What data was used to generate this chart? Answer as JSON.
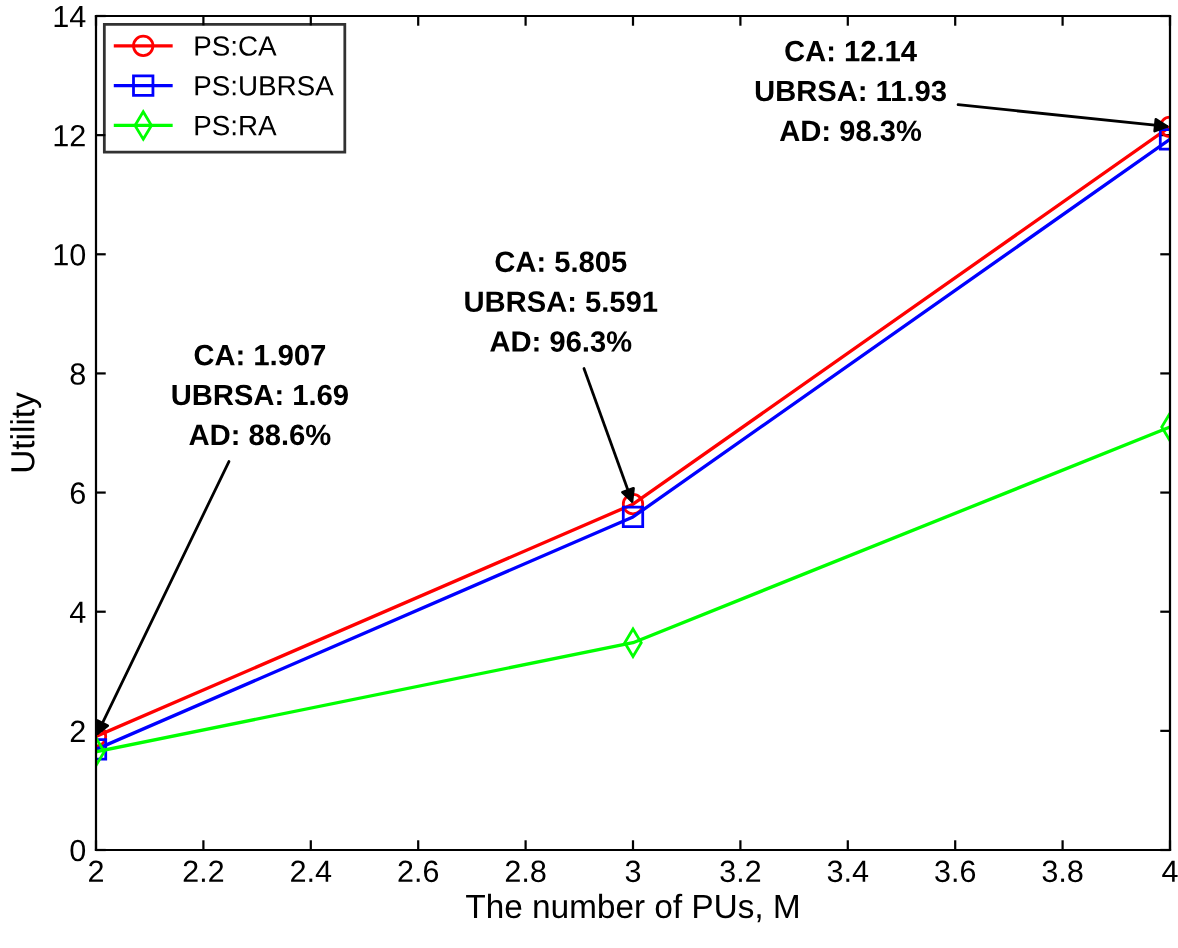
{
  "chart_data": {
    "type": "line",
    "xlabel": "The number of PUs, M",
    "ylabel": "Utility",
    "x": [
      2,
      3,
      4
    ],
    "series": [
      {
        "name": "PS:CA",
        "color": "#ff0000",
        "marker": "circle",
        "values": [
          1.907,
          5.805,
          12.14
        ]
      },
      {
        "name": "PS:UBRSA",
        "color": "#0000ff",
        "marker": "square",
        "values": [
          1.69,
          5.591,
          11.93
        ]
      },
      {
        "name": "PS:RA",
        "color": "#00ff00",
        "marker": "diamond",
        "values": [
          1.65,
          3.48,
          7.1
        ]
      }
    ],
    "xlim": [
      2,
      4
    ],
    "xticks": [
      2,
      2.2,
      2.4,
      2.6,
      2.8,
      3,
      3.2,
      3.4,
      3.6,
      3.8,
      4
    ],
    "ylim": [
      0,
      14
    ],
    "yticks": [
      0,
      2,
      4,
      6,
      8,
      10,
      12,
      14
    ],
    "grid": false,
    "legend": "top left",
    "line_style": "solid",
    "annotations": [
      {
        "text": "CA: 1.907\nUBRSA: 1.69\nAD: 88.6%",
        "x": 2,
        "y": 1.907
      },
      {
        "text": "CA: 5.805\nUBRSA: 5.591\nAD: 96.3%",
        "x": 3,
        "y": 5.805
      },
      {
        "text": "CA: 12.14\nUBRSA: 11.93\nAD: 98.3%",
        "x": 4,
        "y": 12.14
      }
    ]
  }
}
